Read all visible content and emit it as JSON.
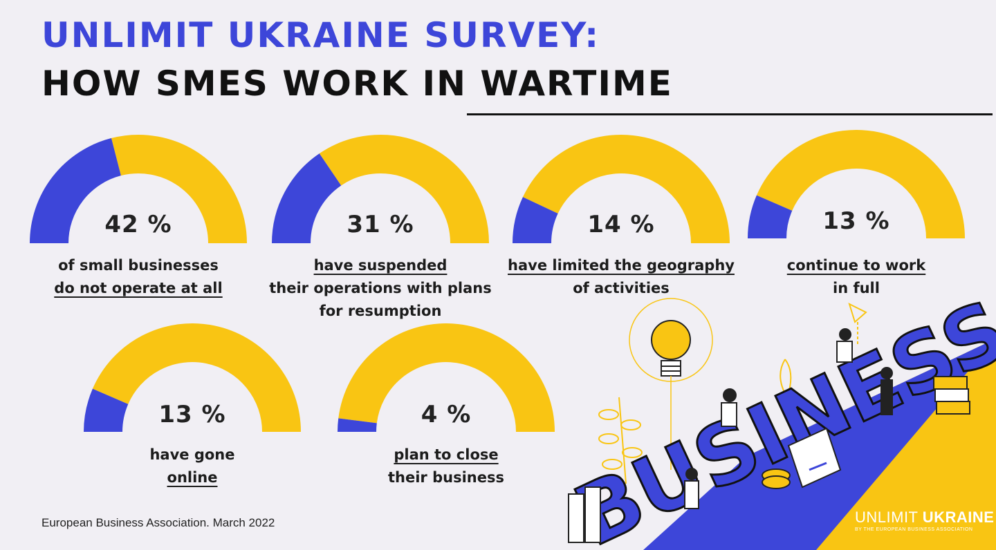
{
  "title": {
    "line1": "UNLIMIT UKRAINE SURVEY:",
    "line2": "HOW SMES WORK IN WARTIME"
  },
  "colors": {
    "filled": "#3d46d9",
    "remaining": "#f9c513",
    "background": "#f1eff4"
  },
  "chart_data": {
    "type": "gauge",
    "unit": "%",
    "items": [
      {
        "value": 42,
        "display": "42 %",
        "label_lines": [
          "of small businesses",
          "do not operate at all"
        ],
        "underlined_lines": [
          1
        ]
      },
      {
        "value": 31,
        "display": "31 %",
        "label_lines": [
          "have suspended ",
          "their operations with plans",
          "for resumption"
        ],
        "underlined_lines": [
          0
        ]
      },
      {
        "value": 14,
        "display": "14 %",
        "label_lines": [
          "have limited the geography ",
          "of activities"
        ],
        "underlined_lines": [
          0
        ]
      },
      {
        "value": 13,
        "display": "13 %",
        "label_lines": [
          "continue to work ",
          "in full"
        ],
        "underlined_lines": [
          0
        ]
      },
      {
        "value": 13,
        "display": "13 %",
        "label_lines": [
          "have gone",
          "online"
        ],
        "underlined_lines": [
          1
        ]
      },
      {
        "value": 4,
        "display": "4 %",
        "label_lines": [
          "plan to close ",
          "their business"
        ],
        "underlined_lines": [
          0
        ]
      }
    ]
  },
  "illustration": {
    "word": "BUSINESS"
  },
  "footer": {
    "source": "European Business Association. March 2022"
  },
  "brand": {
    "name_light": "UNLIMIT ",
    "name_bold": "UKRAINE",
    "tagline": "BY THE EUROPEAN BUSINESS ASSOCIATION"
  }
}
